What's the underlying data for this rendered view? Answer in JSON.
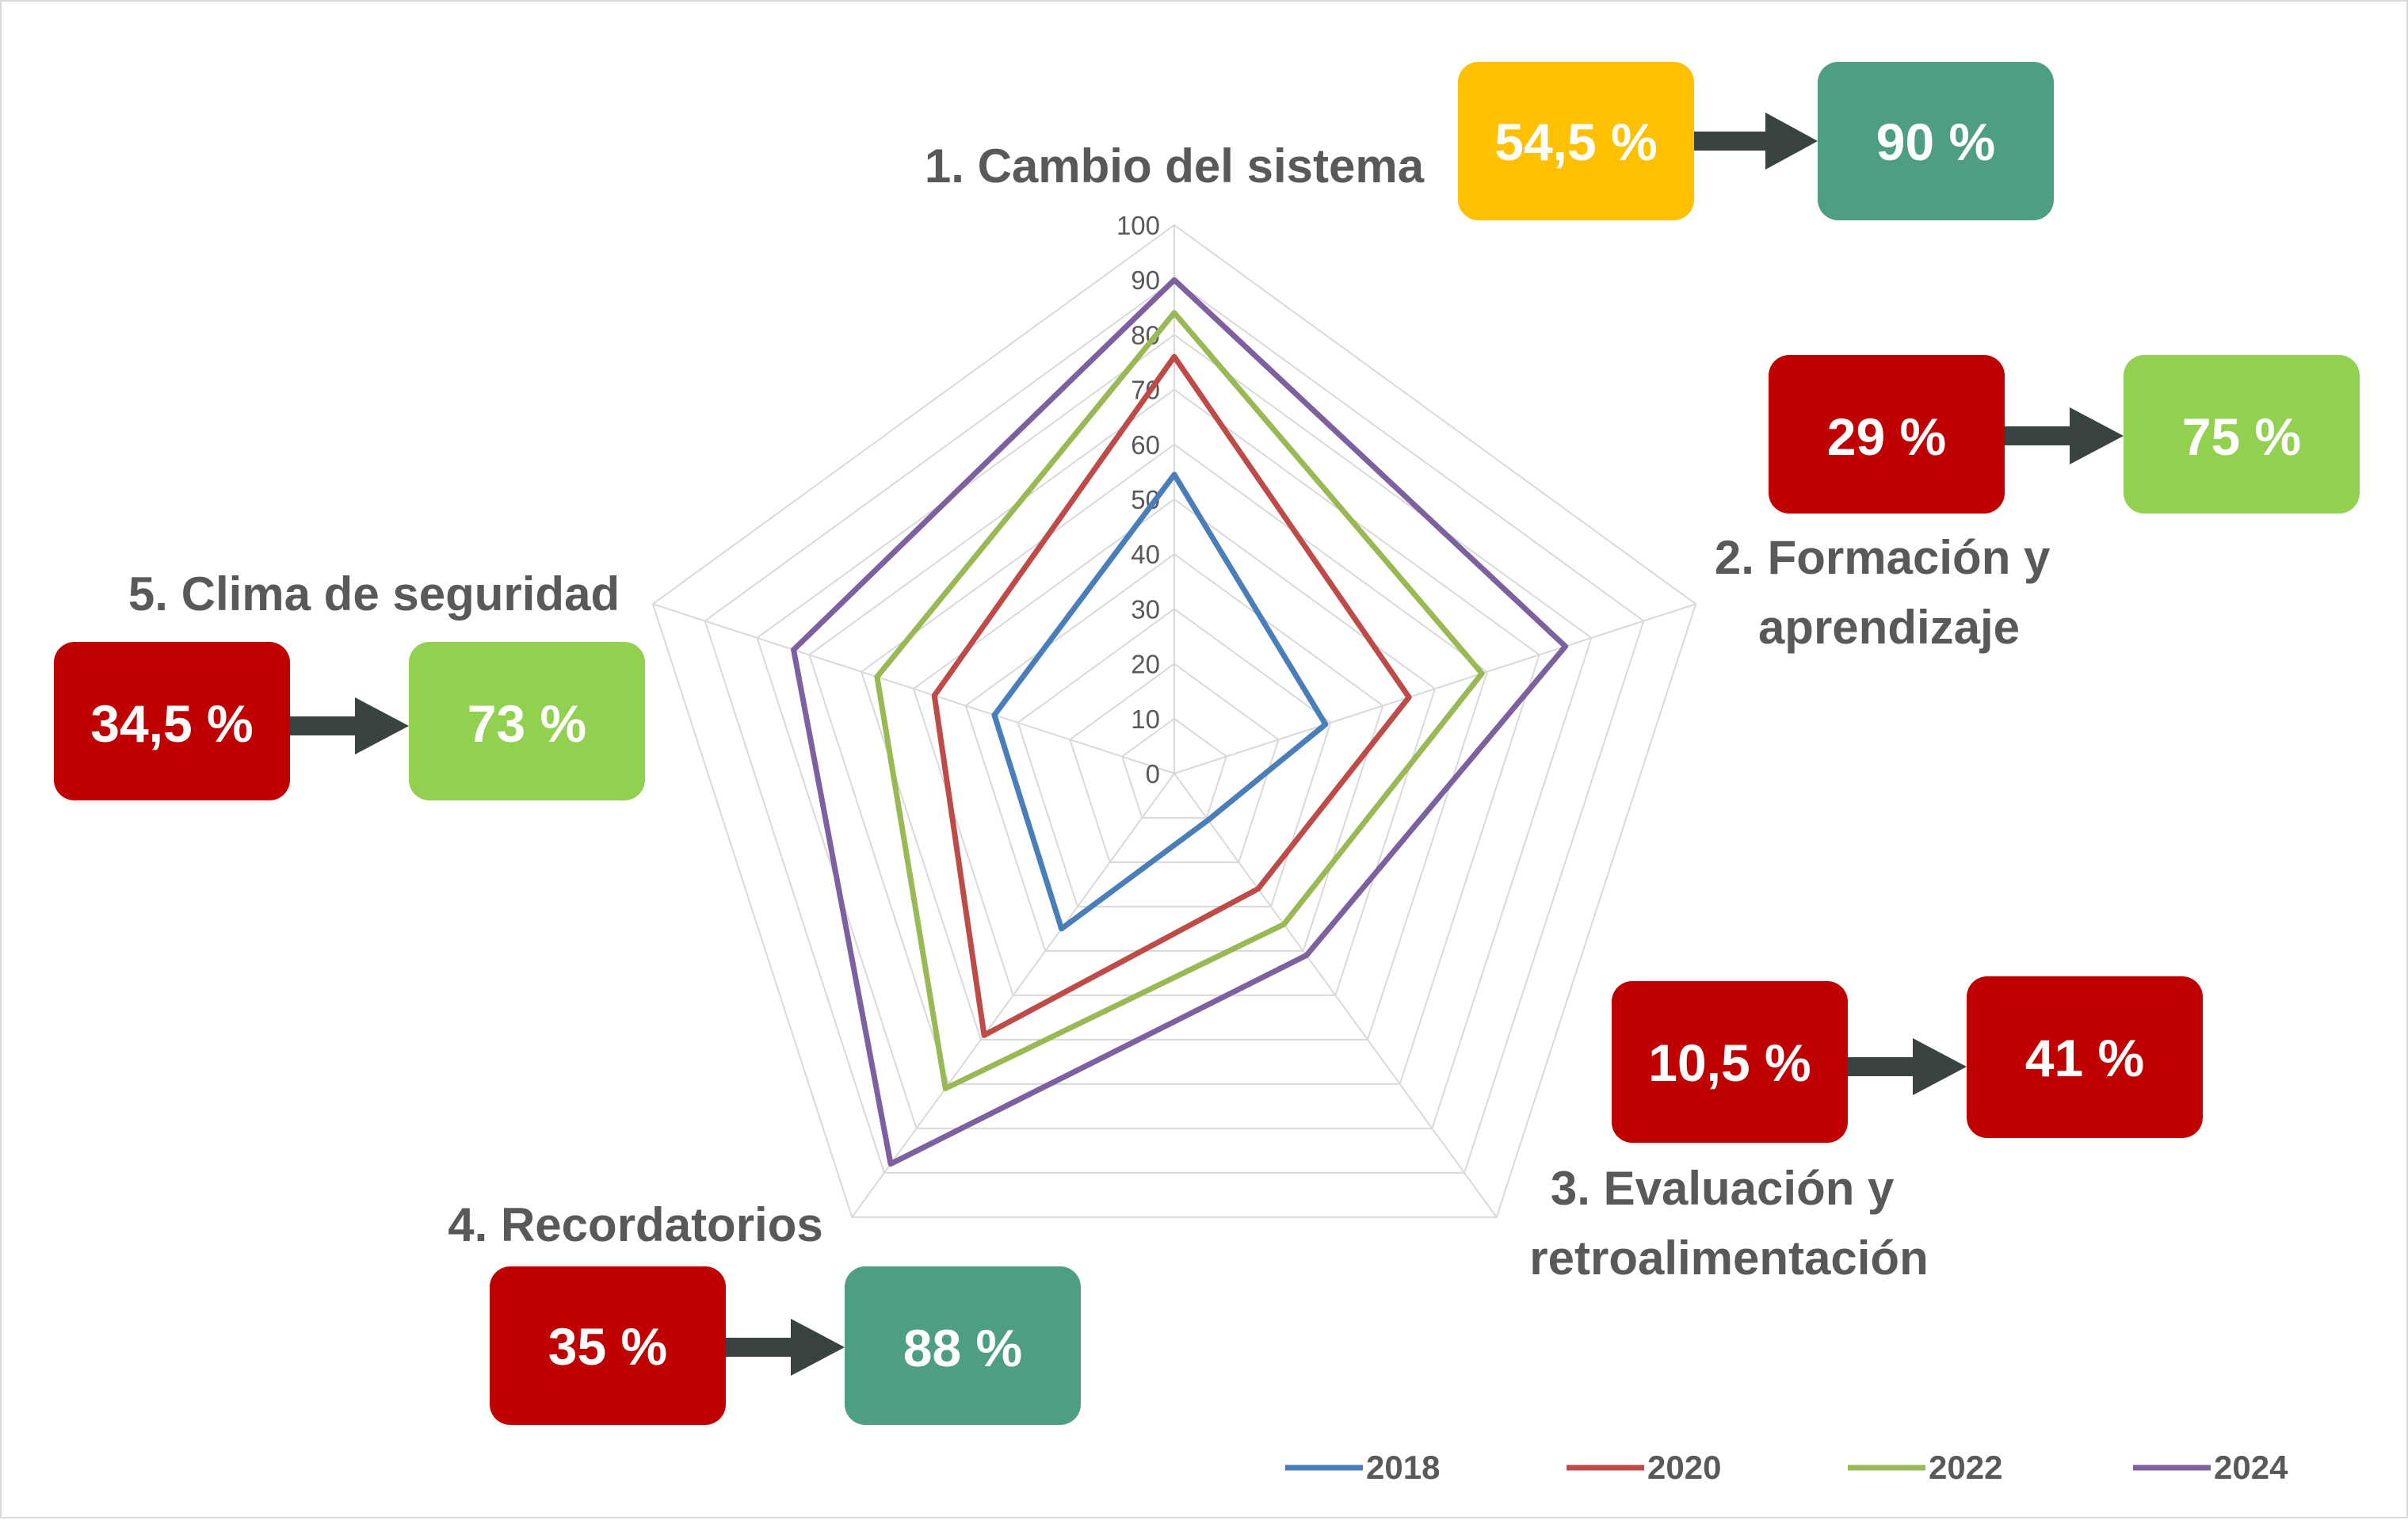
{
  "chart_data": {
    "type": "radar",
    "title": "",
    "categories": [
      "1. Cambio del sistema",
      "2. Formación y aprendizaje",
      "3. Evaluación y retroalimentación",
      "4. Recordatorios",
      "5. Clima de seguridad"
    ],
    "category_lines": [
      [
        "1. Cambio del sistema"
      ],
      [
        "2. Formación y",
        "aprendizaje"
      ],
      [
        "3. Evaluación y",
        "retroalimentación"
      ],
      [
        "4. Recordatorios"
      ],
      [
        "5. Clima de seguridad"
      ]
    ],
    "rlim": [
      0,
      100
    ],
    "ticks": [
      "0",
      "10",
      "20",
      "30",
      "40",
      "50",
      "60",
      "70",
      "80",
      "90",
      "100"
    ],
    "series": [
      {
        "name": "2018",
        "color": "#4a7ebb",
        "values": [
          54.5,
          29,
          10.5,
          35,
          34.5
        ]
      },
      {
        "name": "2020",
        "color": "#be4b48",
        "values": [
          76,
          45,
          26,
          59,
          46
        ]
      },
      {
        "name": "2022",
        "color": "#98b954",
        "values": [
          84,
          59,
          34,
          71,
          57
        ]
      },
      {
        "name": "2024",
        "color": "#7d60a0",
        "values": [
          90,
          75,
          41,
          88,
          73
        ]
      }
    ],
    "annotations": [
      {
        "from": "54,5 %",
        "to": "90 %",
        "from_color": "#ffc000",
        "to_color": "#4d9e84"
      },
      {
        "from": "29 %",
        "to": "75 %",
        "from_color": "#c00000",
        "to_color": "#92d050"
      },
      {
        "from": "10,5 %",
        "to": "41 %",
        "from_color": "#c00000",
        "to_color": "#c00000"
      },
      {
        "from": "35 %",
        "to": "88 %",
        "from_color": "#c00000",
        "to_color": "#4d9e84"
      },
      {
        "from": "34,5 %",
        "to": "73 %",
        "from_color": "#c00000",
        "to_color": "#92d050"
      }
    ],
    "legend_position": "bottom-right",
    "grid": true
  }
}
